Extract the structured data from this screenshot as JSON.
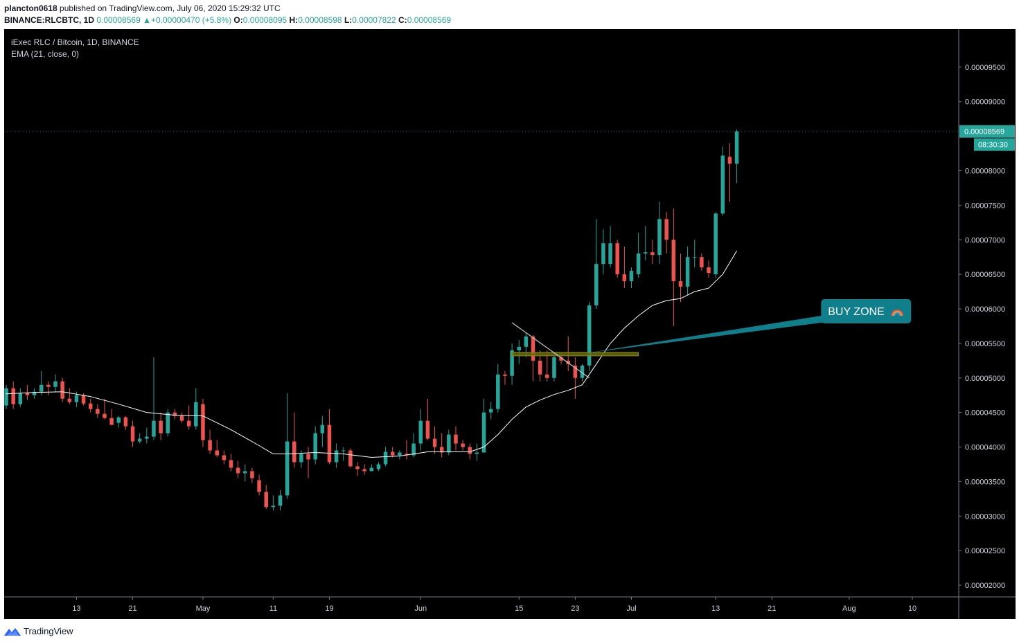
{
  "header": {
    "author": "plancton0618",
    "published_text": "published on TradingView.com, July 06, 2020 15:29:32 UTC",
    "symbol": "BINANCE:RLCBTC, 1D",
    "last_value": "0.00008569",
    "change_arrow": "▲",
    "change": "+0.00000470 (+5.8%)",
    "o_label": "O:",
    "o_value": "0.00008095",
    "h_label": "H:",
    "h_value": "0.00008598",
    "l_label": "L:",
    "l_value": "0.00007822",
    "c_label": "C:",
    "c_value": "0.00008569"
  },
  "legend": {
    "title": "iExec RLC / Bitcoin, 1D, BINANCE",
    "indicator": "EMA (21, close, 0)"
  },
  "footer": {
    "brand": "TradingView",
    "logo_icon": "tradingview-logo-icon"
  },
  "colors": {
    "up": "#26a69a",
    "down": "#ef5350",
    "background": "#000000",
    "ema_line": "#ffffff",
    "trendline": "#c8c8c8",
    "zone_fill": "#6b6b10",
    "zone_stroke": "#8c8c17",
    "callout": "#0f7f8c",
    "scale_border": "#787b86"
  },
  "chart_data": {
    "type": "candlestick",
    "title": "iExec RLC / Bitcoin, 1D, BINANCE",
    "ylim": [
      1.83e-05,
      0.0001005
    ],
    "y_ticks": [
      "0.00002000",
      "0.00002500",
      "0.00003000",
      "0.00003500",
      "0.00004000",
      "0.00004500",
      "0.00005000",
      "0.00005500",
      "0.00006000",
      "0.00006500",
      "0.00007000",
      "0.00007500",
      "0.00008000",
      "0.00009000",
      "0.00009500"
    ],
    "x_ticks": [
      {
        "label": "13",
        "day": -84
      },
      {
        "label": "21",
        "day": -76
      },
      {
        "label": "May",
        "day": -66
      },
      {
        "label": "11",
        "day": -56
      },
      {
        "label": "19",
        "day": -48
      },
      {
        "label": "Jun",
        "day": -35
      },
      {
        "label": "15",
        "day": -21
      },
      {
        "label": "23",
        "day": -13
      },
      {
        "label": "Jul",
        "day": -5
      },
      {
        "label": "13",
        "day": 7
      },
      {
        "label": "21",
        "day": 15
      },
      {
        "label": "Aug",
        "day": 26
      },
      {
        "label": "10",
        "day": 35
      }
    ],
    "x_range_days": [
      -94.3,
      41.6
    ],
    "last_price_label": "0.00008569",
    "countdown_label": "08:30:30",
    "candles": [
      {
        "day": -94,
        "o": 4.6e-05,
        "h": 4.9e-05,
        "l": 4.55e-05,
        "c": 4.85e-05
      },
      {
        "day": -93,
        "o": 4.85e-05,
        "h": 4.95e-05,
        "l": 4.55e-05,
        "c": 4.62e-05
      },
      {
        "day": -92,
        "o": 4.62e-05,
        "h": 4.85e-05,
        "l": 4.58e-05,
        "c": 4.78e-05
      },
      {
        "day": -91,
        "o": 4.78e-05,
        "h": 4.9e-05,
        "l": 4.68e-05,
        "c": 4.75e-05
      },
      {
        "day": -90,
        "o": 4.75e-05,
        "h": 4.85e-05,
        "l": 4.7e-05,
        "c": 4.8e-05
      },
      {
        "day": -89,
        "o": 4.8e-05,
        "h": 5.1e-05,
        "l": 4.75e-05,
        "c": 4.9e-05
      },
      {
        "day": -88,
        "o": 4.9e-05,
        "h": 4.95e-05,
        "l": 4.75e-05,
        "c": 4.87e-05
      },
      {
        "day": -87,
        "o": 4.87e-05,
        "h": 5.05e-05,
        "l": 4.8e-05,
        "c": 4.95e-05
      },
      {
        "day": -86,
        "o": 4.95e-05,
        "h": 5e-05,
        "l": 4.65e-05,
        "c": 4.7e-05
      },
      {
        "day": -85,
        "o": 4.7e-05,
        "h": 4.85e-05,
        "l": 4.62e-05,
        "c": 4.65e-05
      },
      {
        "day": -84,
        "o": 4.65e-05,
        "h": 4.8e-05,
        "l": 4.58e-05,
        "c": 4.75e-05
      },
      {
        "day": -83,
        "o": 4.75e-05,
        "h": 4.78e-05,
        "l": 4.6e-05,
        "c": 4.63e-05
      },
      {
        "day": -82,
        "o": 4.63e-05,
        "h": 4.7e-05,
        "l": 4.5e-05,
        "c": 4.55e-05
      },
      {
        "day": -81,
        "o": 4.55e-05,
        "h": 4.62e-05,
        "l": 4.42e-05,
        "c": 4.48e-05
      },
      {
        "day": -80,
        "o": 4.48e-05,
        "h": 4.7e-05,
        "l": 4.4e-05,
        "c": 4.42e-05
      },
      {
        "day": -79,
        "o": 4.42e-05,
        "h": 4.55e-05,
        "l": 4.35e-05,
        "c": 4.32e-05
      },
      {
        "day": -78,
        "o": 4.35e-05,
        "h": 4.45e-05,
        "l": 4.28e-05,
        "c": 4.43e-05
      },
      {
        "day": -77,
        "o": 4.43e-05,
        "h": 4.45e-05,
        "l": 4.25e-05,
        "c": 4.3e-05
      },
      {
        "day": -76,
        "o": 4.3e-05,
        "h": 4.38e-05,
        "l": 4e-05,
        "c": 4.08e-05
      },
      {
        "day": -75,
        "o": 4.08e-05,
        "h": 4.2e-05,
        "l": 4.05e-05,
        "c": 4.12e-05
      },
      {
        "day": -74,
        "o": 4.12e-05,
        "h": 4.28e-05,
        "l": 4.05e-05,
        "c": 4.15e-05
      },
      {
        "day": -73,
        "o": 4.15e-05,
        "h": 5.3e-05,
        "l": 4.1e-05,
        "c": 4.38e-05
      },
      {
        "day": -72,
        "o": 4.38e-05,
        "h": 4.5e-05,
        "l": 4.1e-05,
        "c": 4.2e-05
      },
      {
        "day": -71,
        "o": 4.2e-05,
        "h": 4.55e-05,
        "l": 4.15e-05,
        "c": 4.5e-05
      },
      {
        "day": -70,
        "o": 4.5e-05,
        "h": 4.55e-05,
        "l": 4.4e-05,
        "c": 4.45e-05
      },
      {
        "day": -69,
        "o": 4.45e-05,
        "h": 4.5e-05,
        "l": 4.35e-05,
        "c": 4.38e-05
      },
      {
        "day": -68,
        "o": 4.38e-05,
        "h": 4.6e-05,
        "l": 4.25e-05,
        "c": 4.3e-05
      },
      {
        "day": -67,
        "o": 4.3e-05,
        "h": 4.85e-05,
        "l": 4.25e-05,
        "c": 4.65e-05
      },
      {
        "day": -66,
        "o": 4.62e-05,
        "h": 4.7e-05,
        "l": 4e-05,
        "c": 4.1e-05
      },
      {
        "day": -65,
        "o": 4.1e-05,
        "h": 4.25e-05,
        "l": 3.9e-05,
        "c": 3.95e-05
      },
      {
        "day": -64,
        "o": 3.95e-05,
        "h": 4.1e-05,
        "l": 3.85e-05,
        "c": 3.88e-05
      },
      {
        "day": -63,
        "o": 3.88e-05,
        "h": 3.95e-05,
        "l": 3.75e-05,
        "c": 3.81e-05
      },
      {
        "day": -62,
        "o": 3.81e-05,
        "h": 3.9e-05,
        "l": 3.65e-05,
        "c": 3.7e-05
      },
      {
        "day": -61,
        "o": 3.7e-05,
        "h": 3.8e-05,
        "l": 3.55e-05,
        "c": 3.62e-05
      },
      {
        "day": -60,
        "o": 3.62e-05,
        "h": 3.75e-05,
        "l": 3.5e-05,
        "c": 3.65e-05
      },
      {
        "day": -59,
        "o": 3.65e-05,
        "h": 3.7e-05,
        "l": 3.48e-05,
        "c": 3.55e-05
      },
      {
        "day": -58,
        "o": 3.52e-05,
        "h": 3.6e-05,
        "l": 3.3e-05,
        "c": 3.35e-05
      },
      {
        "day": -57,
        "o": 3.35e-05,
        "h": 3.45e-05,
        "l": 3.1e-05,
        "c": 3.13e-05
      },
      {
        "day": -56,
        "o": 3.13e-05,
        "h": 3.3e-05,
        "l": 3.08e-05,
        "c": 3.15e-05
      },
      {
        "day": -55,
        "o": 3.15e-05,
        "h": 3.38e-05,
        "l": 3.08e-05,
        "c": 3.3e-05
      },
      {
        "day": -54,
        "o": 3.3e-05,
        "h": 4.78e-05,
        "l": 3.25e-05,
        "c": 4.08e-05
      },
      {
        "day": -53,
        "o": 4.08e-05,
        "h": 4.5e-05,
        "l": 3.7e-05,
        "c": 3.78e-05
      },
      {
        "day": -52,
        "o": 3.78e-05,
        "h": 3.95e-05,
        "l": 3.7e-05,
        "c": 3.9e-05
      },
      {
        "day": -51,
        "o": 3.9e-05,
        "h": 4e-05,
        "l": 3.55e-05,
        "c": 3.82e-05
      },
      {
        "day": -50,
        "o": 3.82e-05,
        "h": 4.3e-05,
        "l": 3.75e-05,
        "c": 4.2e-05
      },
      {
        "day": -49,
        "o": 4.2e-05,
        "h": 4.45e-05,
        "l": 4e-05,
        "c": 4.32e-05
      },
      {
        "day": -48,
        "o": 4.32e-05,
        "h": 4.55e-05,
        "l": 3.75e-05,
        "c": 3.78e-05
      },
      {
        "day": -47,
        "o": 3.78e-05,
        "h": 4.05e-05,
        "l": 3.7e-05,
        "c": 3.95e-05
      },
      {
        "day": -46,
        "o": 3.95e-05,
        "h": 4e-05,
        "l": 3.8e-05,
        "c": 3.95e-05
      },
      {
        "day": -45,
        "o": 3.95e-05,
        "h": 3.98e-05,
        "l": 3.7e-05,
        "c": 3.72e-05
      },
      {
        "day": -44,
        "o": 3.72e-05,
        "h": 3.78e-05,
        "l": 3.58e-05,
        "c": 3.68e-05
      },
      {
        "day": -43,
        "o": 3.68e-05,
        "h": 3.75e-05,
        "l": 3.6e-05,
        "c": 3.65e-05
      },
      {
        "day": -42,
        "o": 3.65e-05,
        "h": 3.75e-05,
        "l": 3.65e-05,
        "c": 3.7e-05
      },
      {
        "day": -41,
        "o": 3.68e-05,
        "h": 3.78e-05,
        "l": 3.65e-05,
        "c": 3.75e-05
      },
      {
        "day": -40,
        "o": 3.75e-05,
        "h": 4e-05,
        "l": 3.72e-05,
        "c": 3.93e-05
      },
      {
        "day": -39,
        "o": 3.93e-05,
        "h": 4e-05,
        "l": 3.85e-05,
        "c": 3.88e-05
      },
      {
        "day": -38,
        "o": 3.88e-05,
        "h": 3.95e-05,
        "l": 3.82e-05,
        "c": 3.92e-05
      },
      {
        "day": -37,
        "o": 3.9e-05,
        "h": 4.1e-05,
        "l": 3.82e-05,
        "c": 3.88e-05
      },
      {
        "day": -36,
        "o": 3.88e-05,
        "h": 4.2e-05,
        "l": 3.85e-05,
        "c": 4.05e-05
      },
      {
        "day": -35,
        "o": 4.05e-05,
        "h": 4.55e-05,
        "l": 3.95e-05,
        "c": 4.38e-05
      },
      {
        "day": -34,
        "o": 4.38e-05,
        "h": 4.7e-05,
        "l": 4.1e-05,
        "c": 4.12e-05
      },
      {
        "day": -33,
        "o": 4.12e-05,
        "h": 4.3e-05,
        "l": 3.9e-05,
        "c": 4e-05
      },
      {
        "day": -32,
        "o": 4e-05,
        "h": 4.2e-05,
        "l": 3.85e-05,
        "c": 3.92e-05
      },
      {
        "day": -31,
        "o": 3.92e-05,
        "h": 4.25e-05,
        "l": 3.88e-05,
        "c": 4.18e-05
      },
      {
        "day": -30,
        "o": 4.18e-05,
        "h": 4.3e-05,
        "l": 3.95e-05,
        "c": 4.05e-05
      },
      {
        "day": -29,
        "o": 4.05e-05,
        "h": 4.1e-05,
        "l": 3.95e-05,
        "c": 4e-05
      },
      {
        "day": -28,
        "o": 4e-05,
        "h": 4.05e-05,
        "l": 3.82e-05,
        "c": 3.9e-05
      },
      {
        "day": -27,
        "o": 3.9e-05,
        "h": 4.05e-05,
        "l": 3.8e-05,
        "c": 3.92e-05
      },
      {
        "day": -26,
        "o": 3.92e-05,
        "h": 4.7e-05,
        "l": 3.92e-05,
        "c": 4.5e-05
      },
      {
        "day": -25,
        "o": 4.5e-05,
        "h": 4.65e-05,
        "l": 4.4e-05,
        "c": 4.55e-05
      },
      {
        "day": -24,
        "o": 4.55e-05,
        "h": 5.2e-05,
        "l": 4.5e-05,
        "c": 5.05e-05
      },
      {
        "day": -23,
        "o": 5.05e-05,
        "h": 5.1e-05,
        "l": 4.9e-05,
        "c": 5.03e-05
      },
      {
        "day": -22,
        "o": 5.03e-05,
        "h": 5.5e-05,
        "l": 4.9e-05,
        "c": 5.4e-05
      },
      {
        "day": -21,
        "o": 5.4e-05,
        "h": 5.55e-05,
        "l": 5.2e-05,
        "c": 5.45e-05
      },
      {
        "day": -20,
        "o": 5.45e-05,
        "h": 5.65e-05,
        "l": 5.3e-05,
        "c": 5.6e-05
      },
      {
        "day": -19,
        "o": 5.6e-05,
        "h": 5.62e-05,
        "l": 4.95e-05,
        "c": 5.25e-05
      },
      {
        "day": -18,
        "o": 5.25e-05,
        "h": 5.4e-05,
        "l": 4.95e-05,
        "c": 5.05e-05
      },
      {
        "day": -17,
        "o": 5.05e-05,
        "h": 5.4e-05,
        "l": 4.95e-05,
        "c": 5e-05
      },
      {
        "day": -16,
        "o": 5e-05,
        "h": 5.35e-05,
        "l": 4.95e-05,
        "c": 5.3e-05
      },
      {
        "day": -15,
        "o": 5.3e-05,
        "h": 5.35e-05,
        "l": 5.2e-05,
        "c": 5.25e-05
      },
      {
        "day": -14,
        "o": 5.25e-05,
        "h": 5.6e-05,
        "l": 5.1e-05,
        "c": 5.2e-05
      },
      {
        "day": -13,
        "o": 5.18e-05,
        "h": 5.3e-05,
        "l": 4.7e-05,
        "c": 5e-05
      },
      {
        "day": -12,
        "o": 5e-05,
        "h": 5.2e-05,
        "l": 4.95e-05,
        "c": 5.18e-05
      },
      {
        "day": -11,
        "o": 5.18e-05,
        "h": 6.1e-05,
        "l": 5.1e-05,
        "c": 6.05e-05
      },
      {
        "day": -10,
        "o": 6.05e-05,
        "h": 7.3e-05,
        "l": 6e-05,
        "c": 6.65e-05
      },
      {
        "day": -9,
        "o": 6.65e-05,
        "h": 7.15e-05,
        "l": 6.5e-05,
        "c": 6.95e-05
      },
      {
        "day": -8,
        "o": 6.65e-05,
        "h": 7.2e-05,
        "l": 6.6e-05,
        "c": 6.95e-05
      },
      {
        "day": -7,
        "o": 6.95e-05,
        "h": 7e-05,
        "l": 6.45e-05,
        "c": 6.5e-05
      },
      {
        "day": -6,
        "o": 6.5e-05,
        "h": 6.9e-05,
        "l": 6.3e-05,
        "c": 6.4e-05
      },
      {
        "day": -5,
        "o": 6.4e-05,
        "h": 6.6e-05,
        "l": 6.3e-05,
        "c": 6.55e-05
      },
      {
        "day": -4,
        "o": 6.5e-05,
        "h": 7.1e-05,
        "l": 6.45e-05,
        "c": 6.8e-05
      },
      {
        "day": -3,
        "o": 6.8e-05,
        "h": 7.2e-05,
        "l": 6.7e-05,
        "c": 6.82e-05
      },
      {
        "day": -2,
        "o": 6.82e-05,
        "h": 7e-05,
        "l": 6.65e-05,
        "c": 6.78e-05
      },
      {
        "day": -1,
        "o": 6.78e-05,
        "h": 7.55e-05,
        "l": 6.65e-05,
        "c": 7.3e-05
      },
      {
        "day": 0,
        "o": 7.3e-05,
        "h": 7.4e-05,
        "l": 6.8e-05,
        "c": 7e-05
      },
      {
        "day": 1,
        "o": 7e-05,
        "h": 7.45e-05,
        "l": 5.75e-05,
        "c": 6.4e-05
      },
      {
        "day": 2,
        "o": 6.4e-05,
        "h": 6.8e-05,
        "l": 6.1e-05,
        "c": 6.32e-05
      },
      {
        "day": 3,
        "o": 6.32e-05,
        "h": 6.9e-05,
        "l": 6.2e-05,
        "c": 6.75e-05
      },
      {
        "day": 4,
        "o": 6.75e-05,
        "h": 7e-05,
        "l": 6.6e-05,
        "c": 6.75e-05
      },
      {
        "day": 5,
        "o": 6.75e-05,
        "h": 6.8e-05,
        "l": 6.55e-05,
        "c": 6.6e-05
      },
      {
        "day": 6,
        "o": 6.6e-05,
        "h": 6.7e-05,
        "l": 6.45e-05,
        "c": 6.52e-05
      },
      {
        "day": 7,
        "o": 6.5e-05,
        "h": 7.4e-05,
        "l": 6.45e-05,
        "c": 7.38e-05
      },
      {
        "day": 8,
        "o": 7.38e-05,
        "h": 8.35e-05,
        "l": 7.35e-05,
        "c": 8.22e-05
      },
      {
        "day": 9,
        "o": 8.2e-05,
        "h": 8.4e-05,
        "l": 7.55e-05,
        "c": 8.1e-05
      },
      {
        "day": 10,
        "o": 8.1e-05,
        "h": 8.6e-05,
        "l": 7.82e-05,
        "c": 8.57e-05
      }
    ],
    "ema": [
      {
        "day": -94,
        "v": 4.77e-05
      },
      {
        "day": -90,
        "v": 4.79e-05
      },
      {
        "day": -86,
        "v": 4.8e-05
      },
      {
        "day": -82,
        "v": 4.73e-05
      },
      {
        "day": -78,
        "v": 4.62e-05
      },
      {
        "day": -74,
        "v": 4.5e-05
      },
      {
        "day": -70,
        "v": 4.46e-05
      },
      {
        "day": -66,
        "v": 4.45e-05
      },
      {
        "day": -62,
        "v": 4.25e-05
      },
      {
        "day": -58,
        "v": 4.02e-05
      },
      {
        "day": -56,
        "v": 3.9e-05
      },
      {
        "day": -54,
        "v": 3.9e-05
      },
      {
        "day": -50,
        "v": 3.92e-05
      },
      {
        "day": -46,
        "v": 3.9e-05
      },
      {
        "day": -42,
        "v": 3.85e-05
      },
      {
        "day": -38,
        "v": 3.87e-05
      },
      {
        "day": -34,
        "v": 3.93e-05
      },
      {
        "day": -30,
        "v": 3.93e-05
      },
      {
        "day": -28,
        "v": 3.93e-05
      },
      {
        "day": -26,
        "v": 4e-05
      },
      {
        "day": -24,
        "v": 4.18e-05
      },
      {
        "day": -22,
        "v": 4.4e-05
      },
      {
        "day": -20,
        "v": 4.58e-05
      },
      {
        "day": -18,
        "v": 4.68e-05
      },
      {
        "day": -16,
        "v": 4.76e-05
      },
      {
        "day": -14,
        "v": 4.82e-05
      },
      {
        "day": -12,
        "v": 4.9e-05
      },
      {
        "day": -10,
        "v": 5.2e-05
      },
      {
        "day": -8,
        "v": 5.5e-05
      },
      {
        "day": -6,
        "v": 5.72e-05
      },
      {
        "day": -4,
        "v": 5.9e-05
      },
      {
        "day": -2,
        "v": 6.05e-05
      },
      {
        "day": 0,
        "v": 6.12e-05
      },
      {
        "day": 2,
        "v": 6.15e-05
      },
      {
        "day": 4,
        "v": 6.25e-05
      },
      {
        "day": 6,
        "v": 6.3e-05
      },
      {
        "day": 8,
        "v": 6.5e-05
      },
      {
        "day": 10,
        "v": 6.84e-05
      }
    ],
    "annotations": {
      "trendline": [
        {
          "day": -22,
          "v": 5.8e-05
        },
        {
          "day": -11,
          "v": 5e-05
        }
      ],
      "buy_zone_rect": {
        "day_start": -22,
        "day_end": -4,
        "v_low": 5.32e-05,
        "v_high": 5.37e-05
      },
      "callout": {
        "text": "BUY ZONE",
        "icon": "rainbow-emoji-icon",
        "tail_start": {
          "day": -12,
          "v": 5.35e-05
        },
        "anchor": {
          "day": 22,
          "v": 5.98e-05
        }
      }
    }
  }
}
